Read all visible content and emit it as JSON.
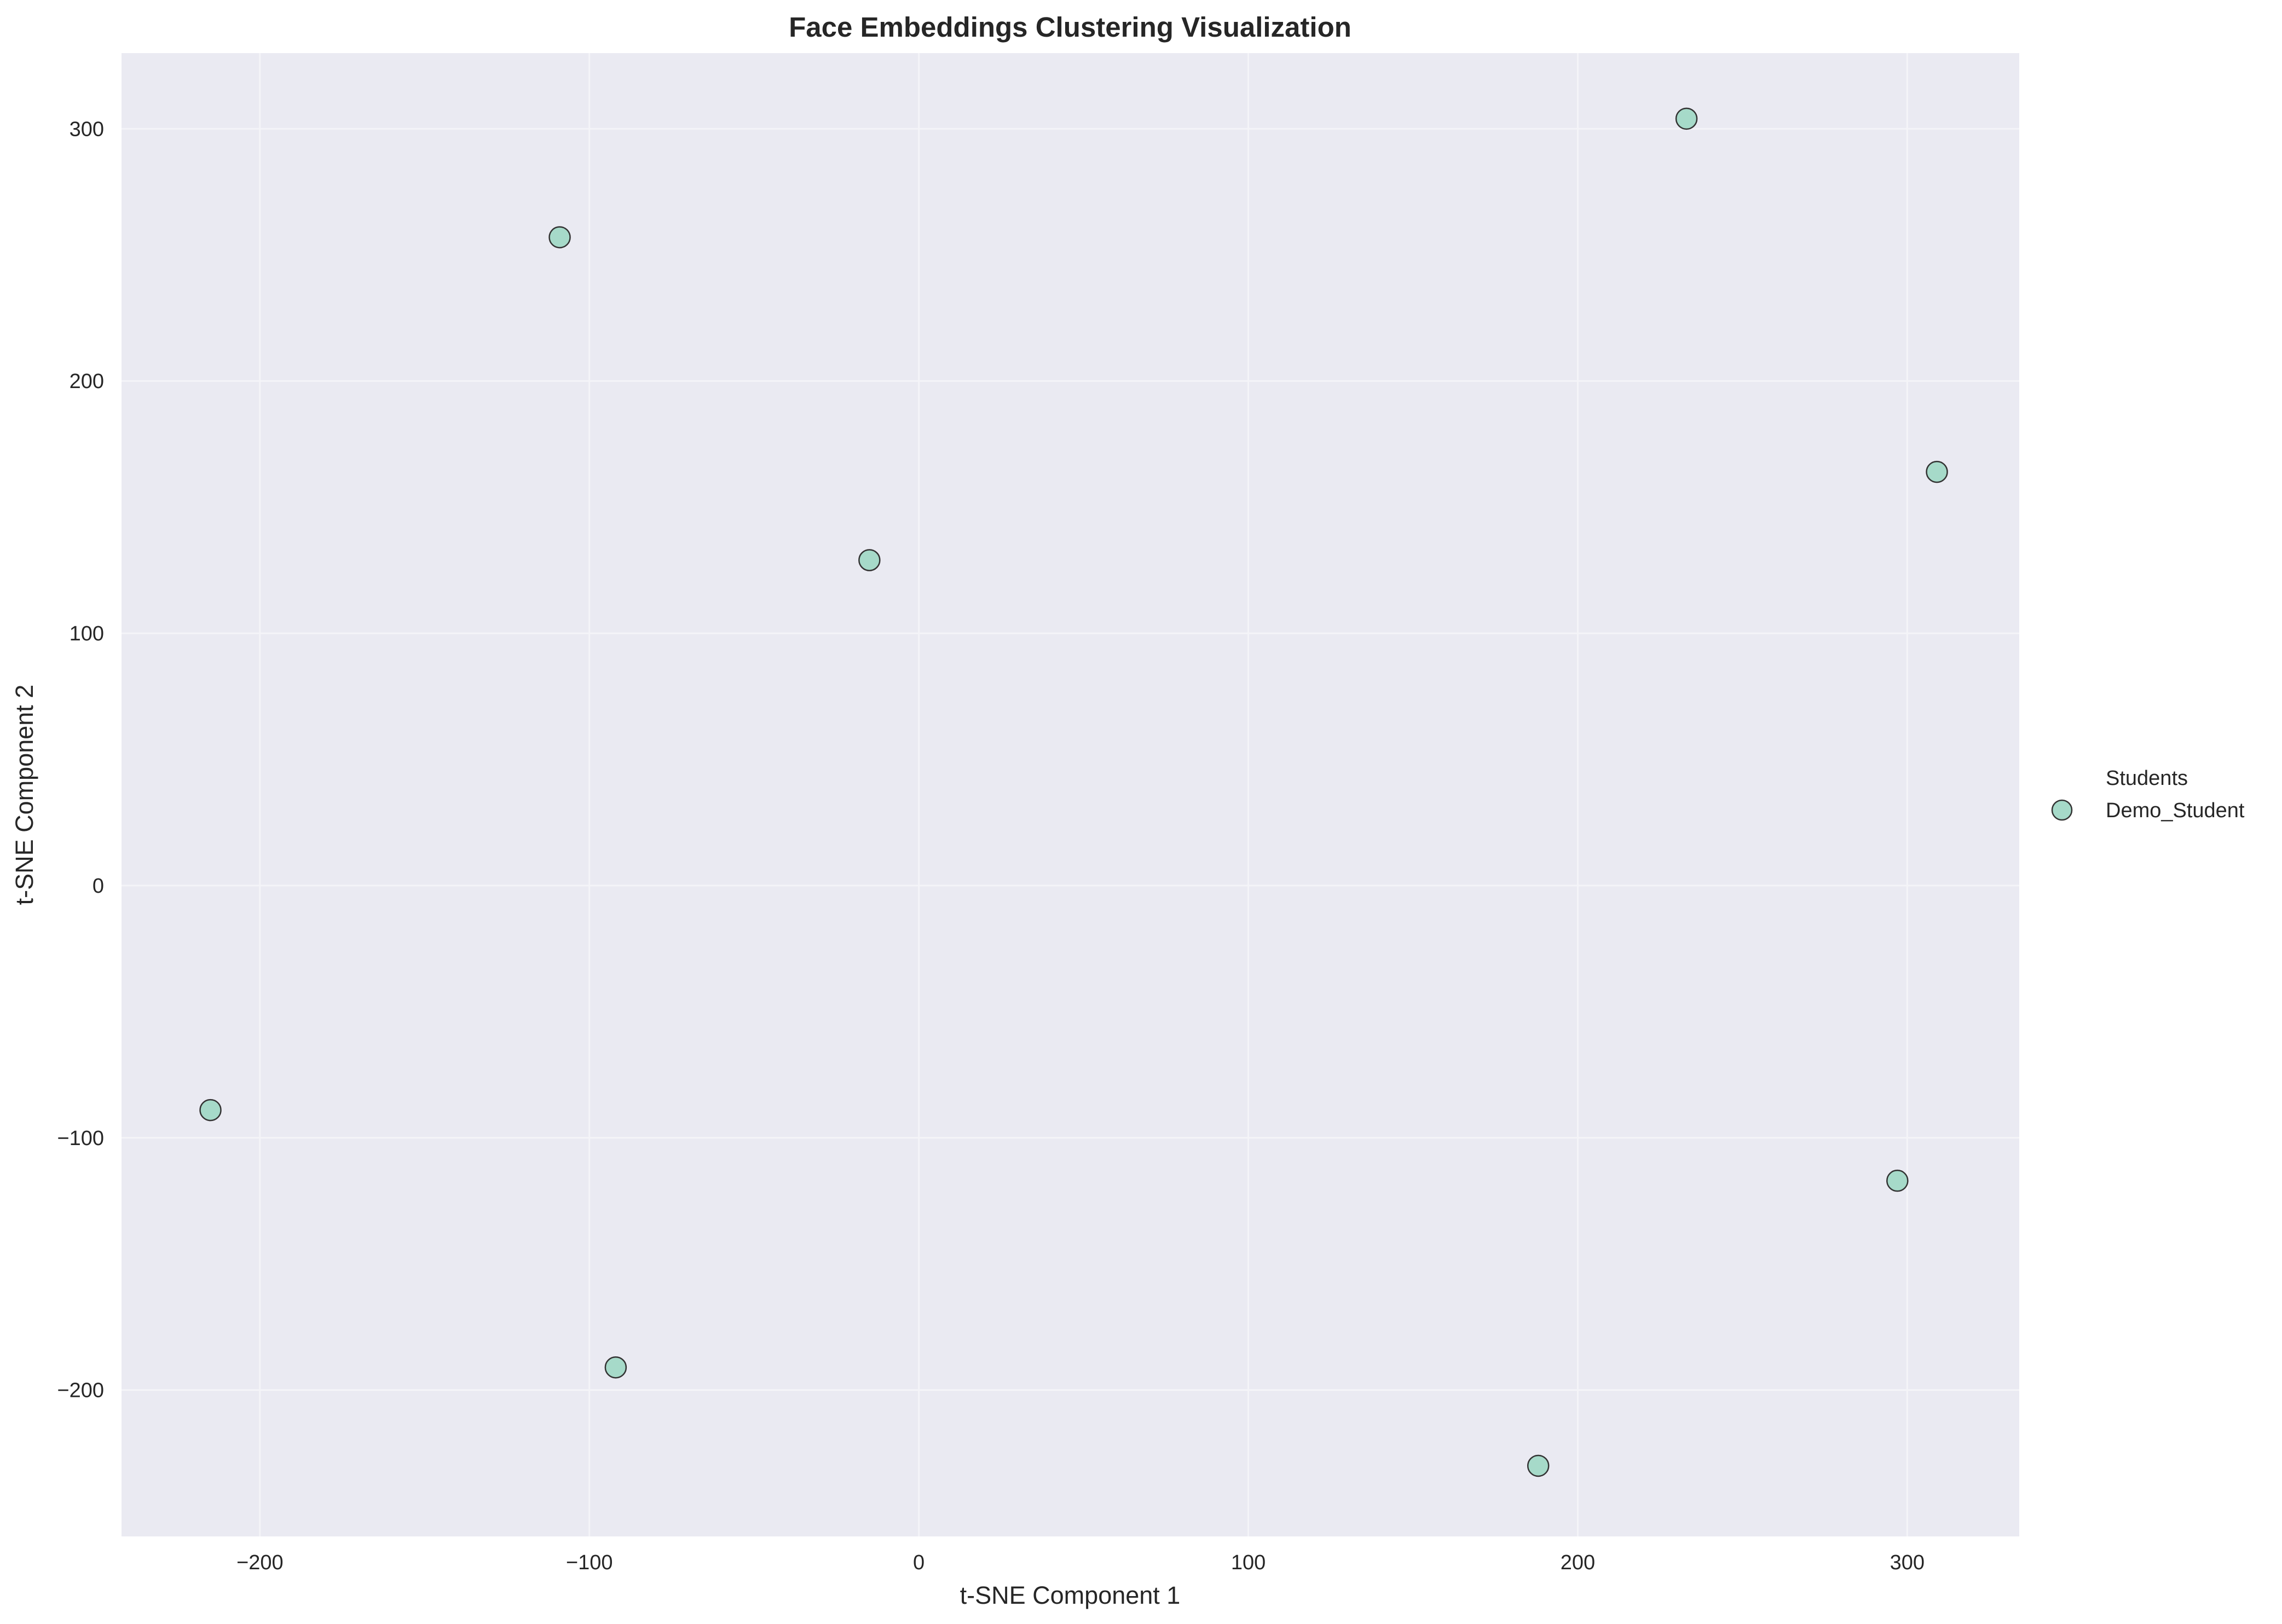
{
  "chart_data": {
    "type": "scatter",
    "title": "Face Embeddings Clustering Visualization",
    "xlabel": "t-SNE Component 1",
    "ylabel": "t-SNE Component 2",
    "xlim": [
      -242,
      334
    ],
    "ylim": [
      -258,
      330
    ],
    "xticks": [
      -200,
      -100,
      0,
      100,
      200,
      300
    ],
    "yticks": [
      -200,
      -100,
      0,
      100,
      200,
      300
    ],
    "xtick_labels": [
      "−200",
      "−100",
      "0",
      "100",
      "200",
      "300"
    ],
    "ytick_labels": [
      "−200",
      "−100",
      "0",
      "100",
      "200",
      "300"
    ],
    "grid": true,
    "legend": {
      "title": "Students",
      "placement": "outside-right",
      "entries": [
        "Demo_Student"
      ]
    },
    "colors": {
      "plot_background": "#eaeaf2",
      "grid": "#f4f4f8",
      "marker_fill": "#a6dac9",
      "marker_edge": "#333333"
    },
    "series": [
      {
        "name": "Demo_Student",
        "points": [
          {
            "x": 233,
            "y": 304
          },
          {
            "x": -109,
            "y": 257
          },
          {
            "x": 309,
            "y": 164
          },
          {
            "x": -15,
            "y": 129
          },
          {
            "x": -215,
            "y": -89
          },
          {
            "x": 297,
            "y": -117
          },
          {
            "x": -92,
            "y": -191
          },
          {
            "x": 188,
            "y": -230
          }
        ]
      }
    ]
  }
}
